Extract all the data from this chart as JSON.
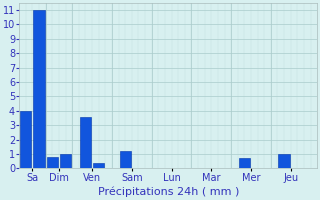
{
  "title": "",
  "xlabel": "Précipitations 24h ( mm )",
  "background_color": "#d8f0f0",
  "bar_color": "#1155dd",
  "grid_color": "#aacccc",
  "bar_edge_color": "#0033aa",
  "ylim": [
    0,
    11.5
  ],
  "yticks": [
    0,
    1,
    2,
    3,
    4,
    5,
    6,
    7,
    8,
    9,
    10,
    11
  ],
  "day_labels": [
    "Sa",
    "Dim",
    "Ven",
    "Sam",
    "Lun",
    "Mar",
    "Mer",
    "Jeu"
  ],
  "day_tick_positions": [
    0.5,
    2.5,
    5.0,
    8.0,
    11.0,
    14.0,
    17.0,
    20.0
  ],
  "day_boundaries": [
    1.5,
    3.5,
    6.5,
    9.5,
    12.5,
    15.5,
    18.5
  ],
  "bars": [
    {
      "x": 0.0,
      "height": 4.0
    },
    {
      "x": 1.0,
      "height": 11.0
    },
    {
      "x": 2.0,
      "height": 0.8
    },
    {
      "x": 3.0,
      "height": 1.0
    },
    {
      "x": 4.5,
      "height": 3.6
    },
    {
      "x": 5.5,
      "height": 0.4
    },
    {
      "x": 7.5,
      "height": 1.2
    },
    {
      "x": 16.5,
      "height": 0.7
    },
    {
      "x": 19.5,
      "height": 1.0
    }
  ],
  "bar_width": 0.85,
  "xlim": [
    -0.5,
    22.0
  ],
  "xlabel_fontsize": 8,
  "tick_fontsize": 7,
  "label_color": "#3333bb"
}
